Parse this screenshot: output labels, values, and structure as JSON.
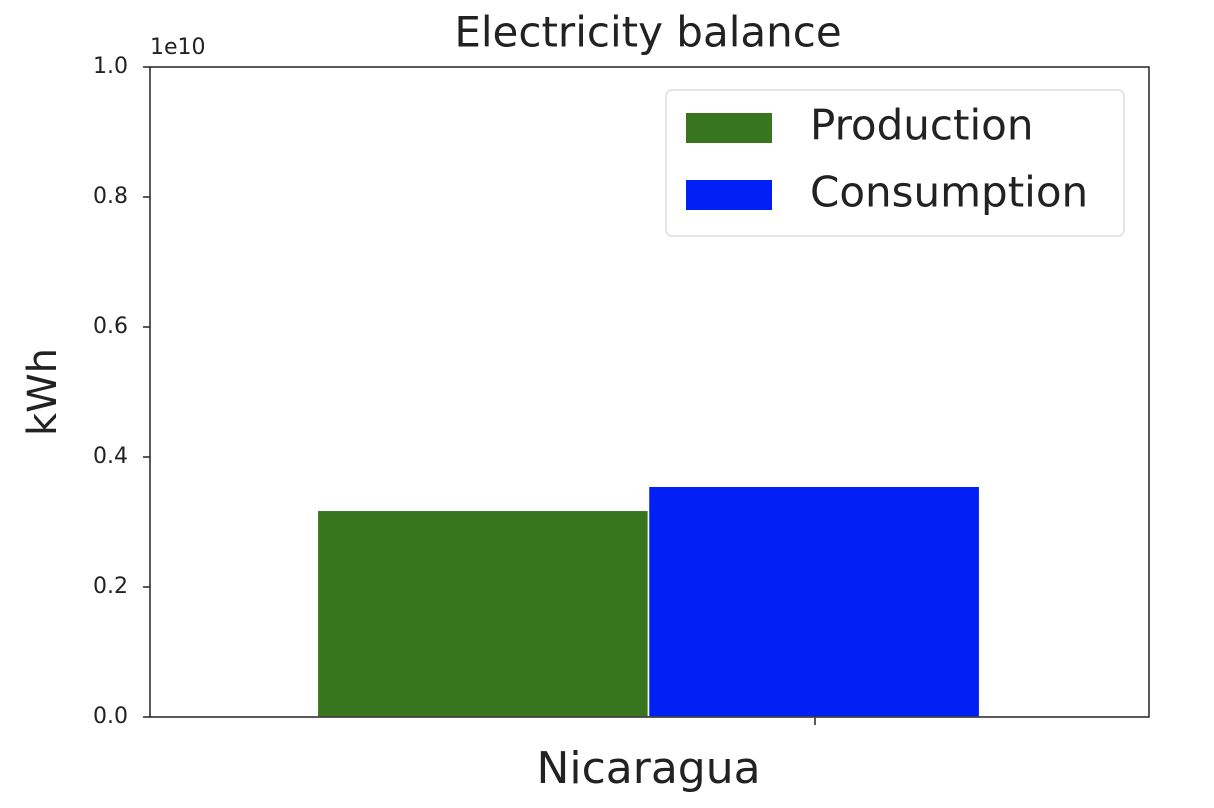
{
  "chart_data": {
    "type": "bar",
    "title": "Electricity balance",
    "y_label": "kWh",
    "y_offset_label": "1e10",
    "categories": [
      "Nicaragua"
    ],
    "series": [
      {
        "name": "Production",
        "color": "#38761d",
        "values": [
          0.318
        ]
      },
      {
        "name": "Consumption",
        "color": "#0020f5",
        "values": [
          0.355
        ]
      }
    ],
    "ylim": [
      0,
      1.0
    ],
    "yticks": [
      {
        "value": 0,
        "label": "0.0"
      },
      0.2,
      0.4,
      0.6,
      0.8,
      {
        "value": 1.0,
        "label": "1.0"
      }
    ],
    "grid": false,
    "legend": "upper right"
  }
}
